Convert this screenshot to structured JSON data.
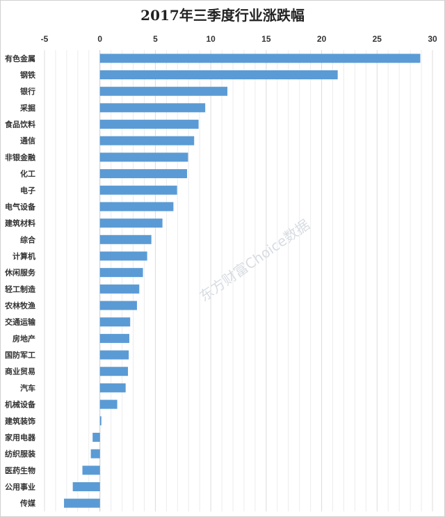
{
  "chart_data": {
    "type": "bar",
    "orientation": "horizontal",
    "title": "2017年三季度行业涨跌幅",
    "xlabel": "",
    "ylabel": "",
    "xlim": [
      -5,
      30
    ],
    "x_ticks": [
      "-5",
      "0",
      "5",
      "10",
      "15",
      "20",
      "25",
      "30"
    ],
    "x_axis_position": "top",
    "grid": true,
    "legend": "none",
    "bar_color": "#5b9bd5",
    "watermark": "东方财富Choice数据",
    "categories": [
      "有色金属",
      "钢铁",
      "银行",
      "采掘",
      "食品饮料",
      "通信",
      "非银金融",
      "化工",
      "电子",
      "电气设备",
      "建筑材料",
      "综合",
      "计算机",
      "休闲服务",
      "轻工制造",
      "农林牧渔",
      "交通运输",
      "房地产",
      "国防军工",
      "商业贸易",
      "汽车",
      "机械设备",
      "建筑装饰",
      "家用电器",
      "纺织服装",
      "医药生物",
      "公用事业",
      "传媒"
    ],
    "values": [
      28.9,
      21.45,
      11.5,
      9.5,
      8.9,
      8.5,
      7.95,
      7.86,
      6.96,
      6.63,
      5.64,
      4.64,
      4.26,
      3.88,
      3.55,
      3.34,
      2.73,
      2.65,
      2.6,
      2.53,
      2.32,
      1.56,
      0.13,
      -0.66,
      -0.82,
      -1.58,
      -2.45,
      -3.24
    ]
  }
}
